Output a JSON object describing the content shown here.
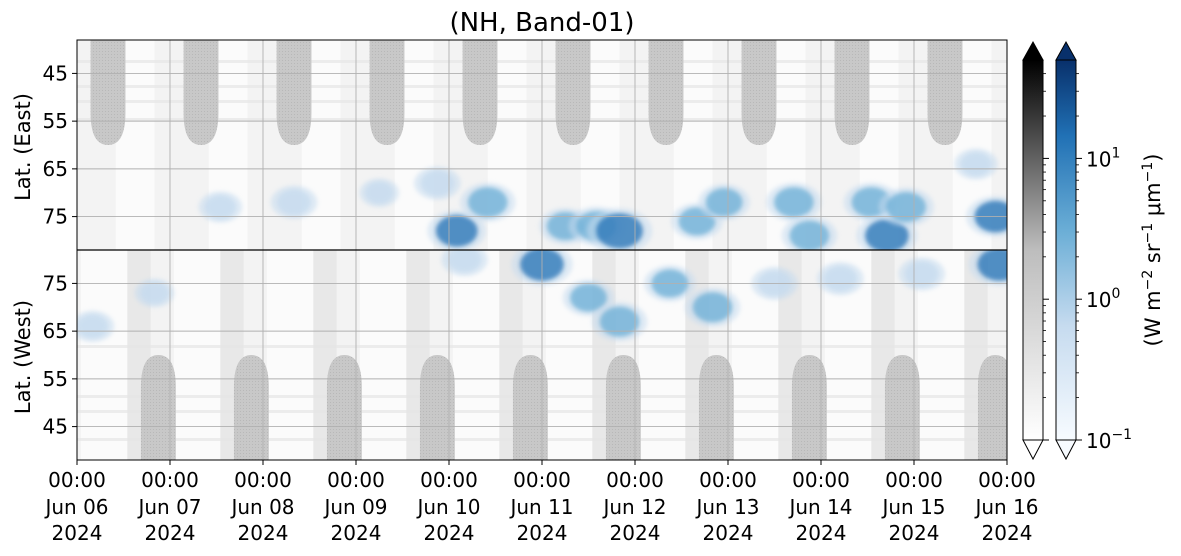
{
  "chart_data": {
    "type": "heatmap",
    "title": "(NH, Band-01)",
    "x_ticks": [
      {
        "time": "00:00",
        "day": "Jun 06",
        "year": "2024"
      },
      {
        "time": "00:00",
        "day": "Jun 07",
        "year": "2024"
      },
      {
        "time": "00:00",
        "day": "Jun 08",
        "year": "2024"
      },
      {
        "time": "00:00",
        "day": "Jun 09",
        "year": "2024"
      },
      {
        "time": "00:00",
        "day": "Jun 10",
        "year": "2024"
      },
      {
        "time": "00:00",
        "day": "Jun 11",
        "year": "2024"
      },
      {
        "time": "00:00",
        "day": "Jun 12",
        "year": "2024"
      },
      {
        "time": "00:00",
        "day": "Jun 13",
        "year": "2024"
      },
      {
        "time": "00:00",
        "day": "Jun 14",
        "year": "2024"
      },
      {
        "time": "00:00",
        "day": "Jun 15",
        "year": "2024"
      },
      {
        "time": "00:00",
        "day": "Jun 16",
        "year": "2024"
      }
    ],
    "xlim": [
      "2024-06-06 00:00",
      "2024-06-16 00:00"
    ],
    "panels": [
      {
        "ylabel": "Lat. (East)",
        "ticks": [
          "45",
          "55",
          "65",
          "75"
        ]
      },
      {
        "ylabel": "Lat. (West)",
        "ticks": [
          "75",
          "65",
          "55",
          "45"
        ]
      }
    ],
    "ylim_east": [
      38,
      82
    ],
    "ylim_west": [
      82,
      38
    ],
    "grid": true,
    "colorbar": {
      "label_parts": [
        "(W m",
        "−2",
        " sr",
        "−1",
        " μm",
        "−1",
        ")"
      ],
      "scale": "log",
      "range": [
        0.1,
        50
      ],
      "tick_base": "10",
      "tick_exponents": [
        "1",
        "0",
        "−1"
      ],
      "tick_values": [
        10,
        1,
        0.1
      ],
      "extend": "both",
      "colormaps": [
        "Greys",
        "Blues"
      ]
    },
    "colors": {
      "background": "#f2f2f2",
      "night_region": "#c4c4c4",
      "blue_light": "#c6dbef",
      "blue_mid": "#6baed6",
      "blue_dark": "#2171b5"
    },
    "features": {
      "night_gaps_east": [
        {
          "t": "2024-06-06 08:00",
          "edge_lat": 60
        },
        {
          "t": "2024-06-07 08:00",
          "edge_lat": 60
        },
        {
          "t": "2024-06-08 08:00",
          "edge_lat": 60
        },
        {
          "t": "2024-06-09 08:00",
          "edge_lat": 60
        },
        {
          "t": "2024-06-10 08:00",
          "edge_lat": 60
        },
        {
          "t": "2024-06-11 08:00",
          "edge_lat": 60
        },
        {
          "t": "2024-06-12 08:00",
          "edge_lat": 60
        },
        {
          "t": "2024-06-13 08:00",
          "edge_lat": 60
        },
        {
          "t": "2024-06-14 08:00",
          "edge_lat": 60
        },
        {
          "t": "2024-06-15 08:00",
          "edge_lat": 60
        }
      ],
      "night_gaps_west": [
        {
          "t": "2024-06-06 21:00",
          "edge_lat": 60
        },
        {
          "t": "2024-06-07 21:00",
          "edge_lat": 60
        },
        {
          "t": "2024-06-08 21:00",
          "edge_lat": 60
        },
        {
          "t": "2024-06-09 21:00",
          "edge_lat": 60
        },
        {
          "t": "2024-06-10 21:00",
          "edge_lat": 60
        },
        {
          "t": "2024-06-11 21:00",
          "edge_lat": 60
        },
        {
          "t": "2024-06-12 21:00",
          "edge_lat": 60
        },
        {
          "t": "2024-06-13 21:00",
          "edge_lat": 60
        },
        {
          "t": "2024-06-14 21:00",
          "edge_lat": 60
        },
        {
          "t": "2024-06-15 21:00",
          "edge_lat": 60
        }
      ],
      "emission_patches": [
        {
          "panel": "east",
          "t": "2024-06-07 13:00",
          "lat": 73,
          "value": 1.5
        },
        {
          "panel": "east",
          "t": "2024-06-08 08:00",
          "lat": 72,
          "value": 2
        },
        {
          "panel": "east",
          "t": "2024-06-09 06:00",
          "lat": 70,
          "value": 1
        },
        {
          "panel": "east",
          "t": "2024-06-09 21:00",
          "lat": 68,
          "value": 2
        },
        {
          "panel": "east",
          "t": "2024-06-10 02:00",
          "lat": 78,
          "value": 5
        },
        {
          "panel": "east",
          "t": "2024-06-10 10:00",
          "lat": 72,
          "value": 4
        },
        {
          "panel": "east",
          "t": "2024-06-11 06:00",
          "lat": 77,
          "value": 3
        },
        {
          "panel": "east",
          "t": "2024-06-11 14:00",
          "lat": 77,
          "value": 4
        },
        {
          "panel": "east",
          "t": "2024-06-11 20:00",
          "lat": 78,
          "value": 8
        },
        {
          "panel": "east",
          "t": "2024-06-12 16:00",
          "lat": 76,
          "value": 3
        },
        {
          "panel": "east",
          "t": "2024-06-12 23:00",
          "lat": 72,
          "value": 3
        },
        {
          "panel": "east",
          "t": "2024-06-13 17:00",
          "lat": 72,
          "value": 4
        },
        {
          "panel": "east",
          "t": "2024-06-13 21:00",
          "lat": 79,
          "value": 4
        },
        {
          "panel": "east",
          "t": "2024-06-14 13:00",
          "lat": 72,
          "value": 4
        },
        {
          "panel": "east",
          "t": "2024-06-14 17:00",
          "lat": 79,
          "value": 6
        },
        {
          "panel": "east",
          "t": "2024-06-14 22:00",
          "lat": 73,
          "value": 4
        },
        {
          "panel": "east",
          "t": "2024-06-15 16:00",
          "lat": 64,
          "value": 1.5
        },
        {
          "panel": "east",
          "t": "2024-06-15 21:00",
          "lat": 75,
          "value": 5
        },
        {
          "panel": "west",
          "t": "2024-06-06 04:00",
          "lat": 66,
          "value": 1.5
        },
        {
          "panel": "west",
          "t": "2024-06-06 20:00",
          "lat": 73,
          "value": 1
        },
        {
          "panel": "west",
          "t": "2024-06-10 04:00",
          "lat": 80,
          "value": 2
        },
        {
          "panel": "west",
          "t": "2024-06-11 00:00",
          "lat": 79,
          "value": 6
        },
        {
          "panel": "west",
          "t": "2024-06-11 12:00",
          "lat": 72,
          "value": 3
        },
        {
          "panel": "west",
          "t": "2024-06-11 20:00",
          "lat": 67,
          "value": 4
        },
        {
          "panel": "west",
          "t": "2024-06-12 09:00",
          "lat": 75,
          "value": 3
        },
        {
          "panel": "west",
          "t": "2024-06-12 20:00",
          "lat": 70,
          "value": 4
        },
        {
          "panel": "west",
          "t": "2024-06-13 12:00",
          "lat": 75,
          "value": 2
        },
        {
          "panel": "west",
          "t": "2024-06-14 05:00",
          "lat": 76,
          "value": 2
        },
        {
          "panel": "west",
          "t": "2024-06-15 02:00",
          "lat": 77,
          "value": 2
        },
        {
          "panel": "west",
          "t": "2024-06-15 22:00",
          "lat": 79,
          "value": 6
        }
      ]
    }
  }
}
